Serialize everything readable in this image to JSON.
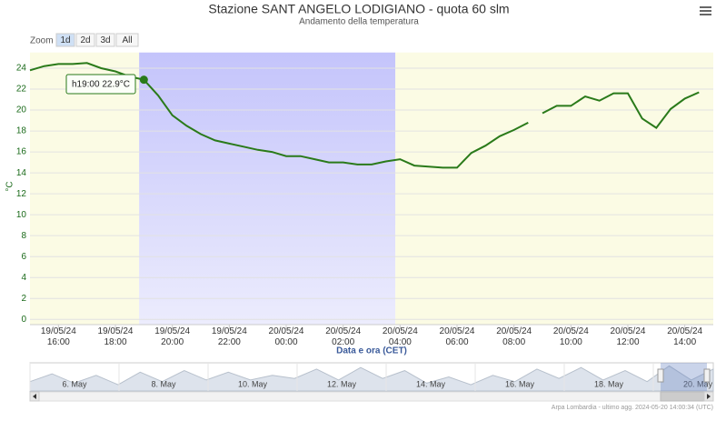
{
  "chart_data": {
    "type": "line",
    "title": "Stazione SANT ANGELO LODIGIANO - quota 60 slm",
    "subtitle": "Andamento della temperatura",
    "x_label": "Data e ora (CET)",
    "y_label": "°C",
    "zoom_label": "Zoom",
    "zoom_buttons": [
      "1d",
      "2d",
      "3d",
      "All"
    ],
    "tooltip": "h19:00 22.9°C",
    "credits": "Arpa Lombardia - ultimo agg. 2024-05-20 14:00:34 (UTC)",
    "x": [
      "19/05/24 15:00",
      "19/05/24 15:30",
      "19/05/24 16:00",
      "19/05/24 16:30",
      "19/05/24 17:00",
      "19/05/24 17:30",
      "19/05/24 18:00",
      "19/05/24 18:30",
      "19/05/24 19:00",
      "19/05/24 19:30",
      "19/05/24 20:00",
      "19/05/24 20:30",
      "19/05/24 21:00",
      "19/05/24 21:30",
      "19/05/24 22:00",
      "19/05/24 22:30",
      "19/05/24 23:00",
      "19/05/24 23:30",
      "20/05/24 00:00",
      "20/05/24 00:30",
      "20/05/24 01:00",
      "20/05/24 01:30",
      "20/05/24 02:00",
      "20/05/24 02:30",
      "20/05/24 03:00",
      "20/05/24 03:30",
      "20/05/24 04:00",
      "20/05/24 04:30",
      "20/05/24 05:00",
      "20/05/24 05:30",
      "20/05/24 06:00",
      "20/05/24 06:30",
      "20/05/24 07:00",
      "20/05/24 07:30",
      "20/05/24 08:00",
      "20/05/24 08:30",
      "20/05/24 08:45",
      "20/05/24 09:00",
      "20/05/24 09:30",
      "20/05/24 10:00",
      "20/05/24 10:30",
      "20/05/24 11:00",
      "20/05/24 11:30",
      "20/05/24 12:00",
      "20/05/24 12:30",
      "20/05/24 13:00",
      "20/05/24 13:30",
      "20/05/24 14:00",
      "20/05/24 14:30"
    ],
    "series": [
      {
        "name": "Temperatura",
        "color": "#2a7a1a",
        "values": [
          23.8,
          24.2,
          24.4,
          24.4,
          24.5,
          24.0,
          23.7,
          23.2,
          22.9,
          21.4,
          19.5,
          18.5,
          17.7,
          17.1,
          16.8,
          16.5,
          16.2,
          16.0,
          15.6,
          15.6,
          15.3,
          15.0,
          15.0,
          14.8,
          14.8,
          15.1,
          15.3,
          14.7,
          14.6,
          14.5,
          14.5,
          15.9,
          16.6,
          17.5,
          18.1,
          18.8,
          null,
          19.7,
          20.4,
          20.4,
          21.3,
          20.9,
          21.6,
          21.6,
          19.2,
          18.3,
          20.1,
          21.1,
          21.7
        ]
      }
    ],
    "xlim": [
      "19/05/24 15:00",
      "20/05/24 15:00"
    ],
    "xticks": [
      "19/05/24 16:00",
      "19/05/24 18:00",
      "19/05/24 20:00",
      "19/05/24 22:00",
      "20/05/24 00:00",
      "20/05/24 02:00",
      "20/05/24 04:00",
      "20/05/24 06:00",
      "20/05/24 08:00",
      "20/05/24 10:00",
      "20/05/24 12:00",
      "20/05/24 14:00"
    ],
    "ylim": [
      -0.5,
      25.5
    ],
    "yticks": [
      0,
      2,
      4,
      6,
      8,
      10,
      12,
      14,
      16,
      18,
      20,
      22,
      24
    ],
    "grid": true,
    "plot_bands": [
      {
        "from": "19/05/24 15:00",
        "to": "19/05/24 18:50",
        "color": "#fbfbe4"
      },
      {
        "from": "19/05/24 18:50",
        "to": "20/05/24 03:50",
        "color": "#c9c9fb"
      },
      {
        "from": "20/05/24 03:50",
        "to": "20/05/24 15:00",
        "color": "#fbfbe4"
      }
    ],
    "navigator": {
      "labels": [
        "6. May",
        "8. May",
        "10. May",
        "12. May",
        "14. May",
        "16. May",
        "18. May",
        "20. May"
      ],
      "values": [
        14,
        19,
        13,
        18,
        12,
        20,
        14,
        21,
        15,
        20,
        15,
        18,
        16,
        22,
        15,
        23,
        16,
        21,
        13,
        17,
        12,
        18,
        14,
        22,
        16,
        23,
        15,
        21,
        14,
        24,
        15,
        22
      ]
    }
  }
}
